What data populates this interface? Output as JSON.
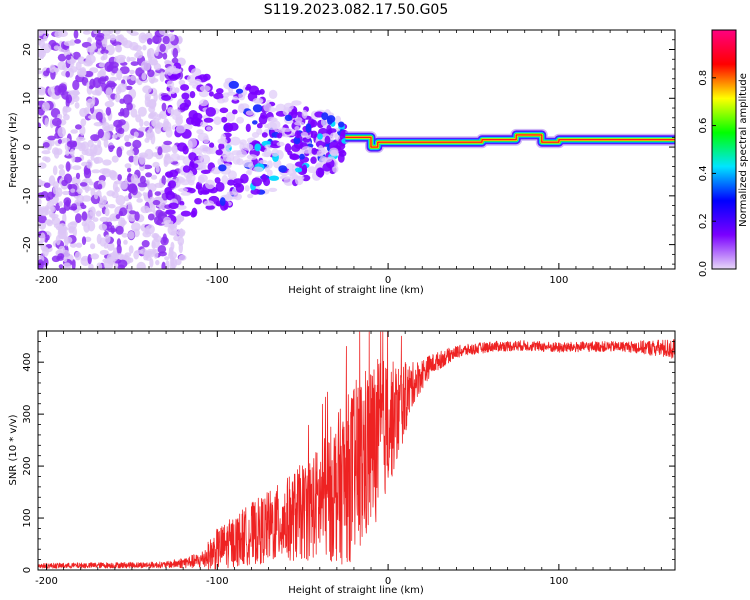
{
  "figure_title": "S119.2023.082.17.50.G05",
  "colors": {
    "snr_line": "#ee2222",
    "frame": "#000000",
    "background": "#ffffff"
  },
  "chart_data": [
    {
      "type": "heatmap",
      "name": "spectrogram",
      "title": "",
      "xlabel": "Height of straight line (km)",
      "ylabel": "Frequency (Hz)",
      "xlim": [
        -205,
        168
      ],
      "ylim": [
        -25,
        24
      ],
      "x_ticks": [
        -200,
        -100,
        0,
        100
      ],
      "x_tick_labels": [
        "-200",
        "-100",
        "0",
        "100"
      ],
      "y_ticks": [
        -20,
        -10,
        0,
        10,
        20
      ],
      "y_tick_labels": [
        "-20",
        "-10",
        "0",
        "10",
        "20"
      ],
      "colormap": "rainbow (white/violet low → red/magenta high)",
      "colorbar": {
        "label": "Normalized spectral amplitude",
        "range": [
          0,
          1
        ],
        "ticks": [
          0.0,
          0.2,
          0.4,
          0.6,
          0.8
        ],
        "tick_labels": [
          "0.0",
          "0.2",
          "0.4",
          "0.6",
          "0.8"
        ],
        "stops": [
          "#e8d8f8",
          "#7a00ff",
          "#0000ff",
          "#00e5ff",
          "#00ff00",
          "#ffff00",
          "#ff0000",
          "#ff0080"
        ]
      },
      "features": {
        "noise_region_km": [
          -205,
          -130
        ],
        "transition_region_km": [
          -130,
          -25
        ],
        "tone_start_km": -25,
        "tone_frequency_hz": 1.5,
        "tone_segments": [
          {
            "from": -25,
            "to": -10,
            "freq": 2.0
          },
          {
            "from": -10,
            "to": -6,
            "freq": 0.0
          },
          {
            "from": -6,
            "to": 55,
            "freq": 1.0
          },
          {
            "from": 55,
            "to": 75,
            "freq": 1.5
          },
          {
            "from": 75,
            "to": 90,
            "freq": 2.5
          },
          {
            "from": 90,
            "to": 100,
            "freq": 1.0
          },
          {
            "from": 100,
            "to": 168,
            "freq": 1.5
          }
        ]
      }
    },
    {
      "type": "line",
      "name": "snr",
      "title": "",
      "xlabel": "Height of straight line (km)",
      "ylabel": "SNR (10 * v/v)",
      "xlim": [
        -205,
        168
      ],
      "ylim": [
        0,
        460
      ],
      "x_ticks": [
        -200,
        -100,
        0,
        100
      ],
      "x_tick_labels": [
        "-200",
        "-100",
        "0",
        "100"
      ],
      "y_ticks": [
        0,
        100,
        200,
        300,
        400
      ],
      "y_tick_labels": [
        "0",
        "100",
        "200",
        "300",
        "400"
      ],
      "envelope": {
        "x": [
          -205,
          -130,
          -110,
          -100,
          -80,
          -60,
          -40,
          -25,
          -15,
          -5,
          5,
          15,
          25,
          40,
          60,
          80,
          100,
          120,
          140,
          168
        ],
        "y_mean": [
          8,
          10,
          18,
          40,
          70,
          95,
          130,
          170,
          210,
          260,
          300,
          360,
          395,
          420,
          430,
          432,
          428,
          430,
          430,
          425
        ],
        "y_spread": [
          5,
          6,
          15,
          40,
          60,
          80,
          110,
          160,
          180,
          150,
          100,
          40,
          20,
          12,
          10,
          10,
          10,
          10,
          10,
          20
        ]
      }
    }
  ]
}
